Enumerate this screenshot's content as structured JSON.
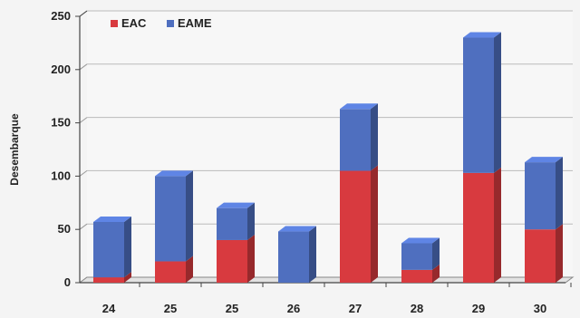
{
  "chart_data": {
    "type": "bar",
    "stacked": true,
    "categories": [
      "24",
      "25",
      "25",
      "26",
      "27",
      "28",
      "29",
      "30"
    ],
    "series": [
      {
        "name": "EAC",
        "color": "#d83a3f",
        "values": [
          5,
          20,
          40,
          0,
          105,
          12,
          103,
          50
        ]
      },
      {
        "name": "EAME",
        "color": "#4f6fbf",
        "values": [
          52,
          80,
          30,
          48,
          58,
          25,
          127,
          63
        ]
      }
    ],
    "xlabel": "",
    "ylabel": "Desembarque",
    "yticks": [
      0,
      50,
      100,
      150,
      200,
      250
    ],
    "ylim": [
      0,
      250
    ],
    "grid": true,
    "legend_position": "top-left",
    "legend": [
      "EAC",
      "EAME"
    ]
  }
}
